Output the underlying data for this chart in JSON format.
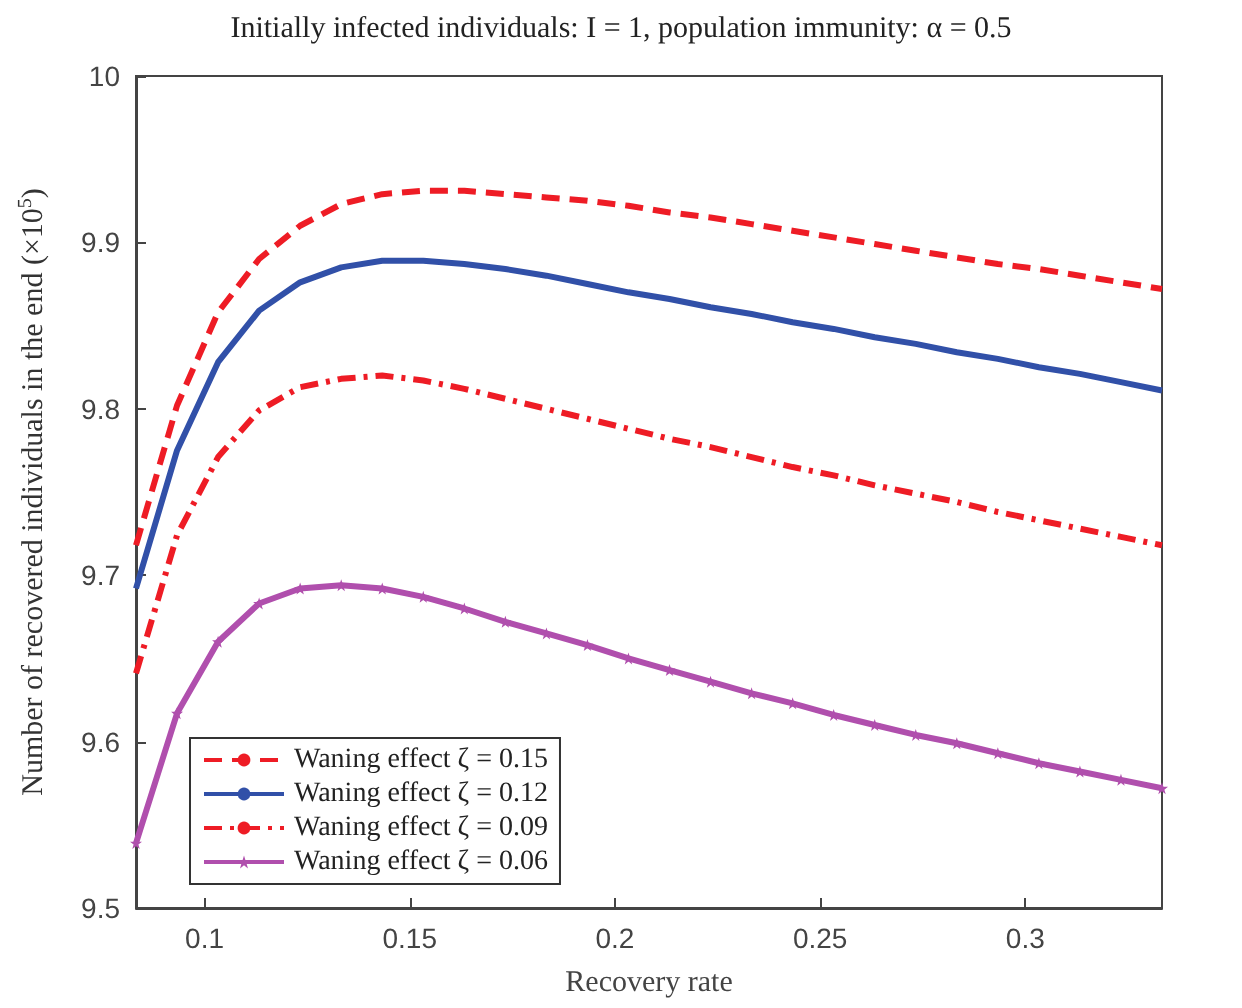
{
  "chart_data": {
    "type": "line",
    "title": "Initially infected individuals: I = 1, population immunity: α = 0.5",
    "xlabel": "Recovery rate",
    "ylabel": "Number of recovered individuals in the end (×10$^{5}$)",
    "x": [
      0.0833,
      0.0933,
      0.1033,
      0.1133,
      0.1233,
      0.1333,
      0.1433,
      0.1533,
      0.1633,
      0.1733,
      0.1833,
      0.1933,
      0.2033,
      0.2133,
      0.2233,
      0.2333,
      0.2433,
      0.2533,
      0.2633,
      0.2733,
      0.2833,
      0.2933,
      0.3033,
      0.3133,
      0.3233,
      0.3333
    ],
    "series": [
      {
        "name": "Waning effect ζ = 0.15",
        "color": "#ee1c25",
        "line_style": "dashed",
        "marker": "none",
        "values": [
          9.718,
          9.802,
          9.858,
          9.89,
          9.91,
          9.923,
          9.929,
          9.931,
          9.931,
          9.929,
          9.927,
          9.925,
          9.922,
          9.918,
          9.915,
          9.911,
          9.907,
          9.903,
          9.899,
          9.895,
          9.891,
          9.887,
          9.884,
          9.88,
          9.876,
          9.872
        ]
      },
      {
        "name": "Waning effect ζ = 0.12",
        "color": "#3150a8",
        "line_style": "solid",
        "marker": "none",
        "values": [
          9.692,
          9.775,
          9.828,
          9.859,
          9.876,
          9.885,
          9.889,
          9.889,
          9.887,
          9.884,
          9.88,
          9.875,
          9.87,
          9.866,
          9.861,
          9.857,
          9.852,
          9.848,
          9.843,
          9.839,
          9.834,
          9.83,
          9.825,
          9.821,
          9.816,
          9.811
        ]
      },
      {
        "name": "Waning effect ζ = 0.09",
        "color": "#ee1c25",
        "line_style": "dashdot",
        "marker": "none",
        "values": [
          9.641,
          9.724,
          9.771,
          9.799,
          9.813,
          9.818,
          9.82,
          9.817,
          9.812,
          9.806,
          9.8,
          9.794,
          9.788,
          9.782,
          9.777,
          9.771,
          9.765,
          9.76,
          9.754,
          9.749,
          9.744,
          9.738,
          9.733,
          9.728,
          9.723,
          9.718
        ]
      },
      {
        "name": "Waning effect ζ = 0.06",
        "color": "#b04fad",
        "line_style": "solid",
        "marker": "star",
        "values": [
          9.539,
          9.617,
          9.66,
          9.683,
          9.692,
          9.694,
          9.692,
          9.687,
          9.68,
          9.672,
          9.665,
          9.658,
          9.65,
          9.643,
          9.636,
          9.629,
          9.623,
          9.616,
          9.61,
          9.604,
          9.599,
          9.593,
          9.587,
          9.582,
          9.577,
          9.572
        ]
      }
    ],
    "xlim": [
      0.0833,
      0.3333
    ],
    "xticks": [
      0.1,
      0.15,
      0.2,
      0.25,
      0.3
    ],
    "ylim": [
      9.5,
      10
    ],
    "yticks": [
      9.5,
      9.6,
      9.7,
      9.8,
      9.9,
      10
    ],
    "grid": false,
    "legend": "bottom left"
  }
}
